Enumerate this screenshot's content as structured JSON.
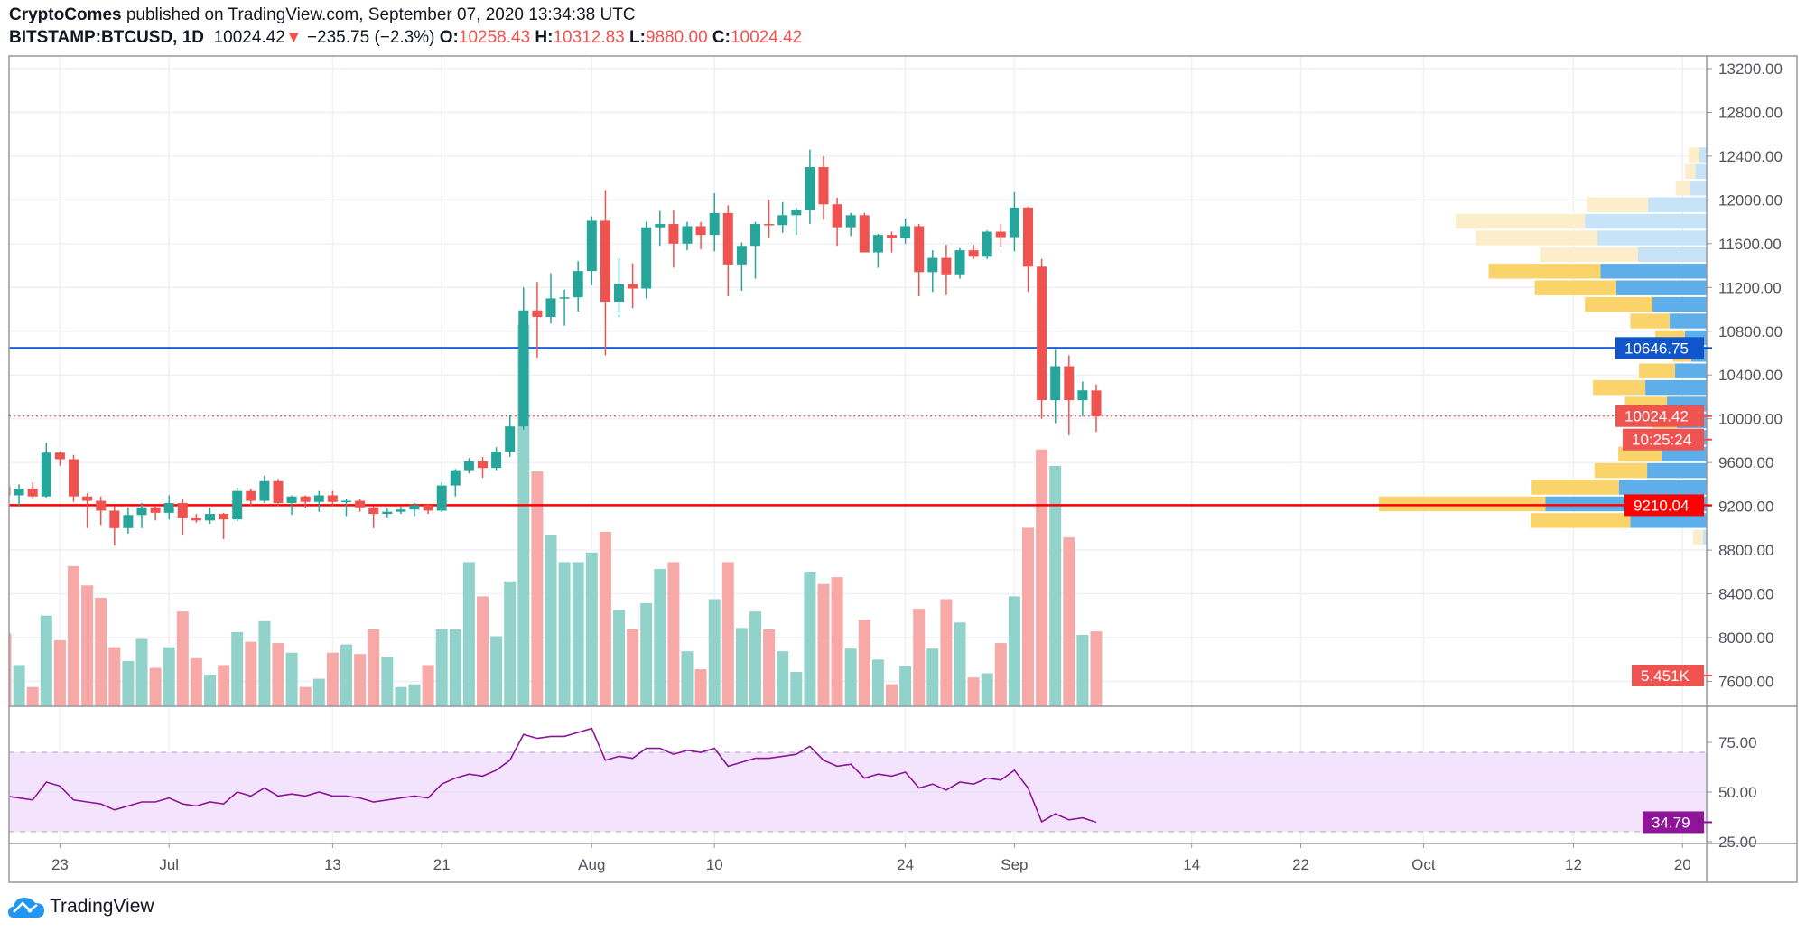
{
  "header": {
    "author": "CryptoComes",
    "published_text": "published on TradingView.com, September 07, 2020 13:34:38 UTC",
    "symbol": "BITSTAMP:BTCUSD, 1D",
    "last": "10024.42",
    "change": "−235.75 (−2.3%)",
    "o_label": "O:",
    "o": "10258.43",
    "h_label": "H:",
    "h": "10312.83",
    "l_label": "L:",
    "l": "9880.00",
    "c_label": "C:",
    "c": "10024.42",
    "change_icon": "triangle-down-icon"
  },
  "footer": {
    "brand": "TradingView",
    "icon": "tradingview-cloud-icon"
  },
  "colors": {
    "up": "#26a69a",
    "down": "#ef5350",
    "vol_up": "#91d2cb",
    "vol_down": "#f7a9a7",
    "profile_up": "#5eaeea",
    "profile_down": "#fad46b",
    "profile_up_light": "#c6e3f7",
    "profile_down_light": "#fdeecb",
    "resistance": "#1f5fd1",
    "support": "#ff0000",
    "rsi_line": "#8e1599",
    "rsi_band": "#f3e3fd",
    "grid": "#eef0f6",
    "axis_text": "#50535e"
  },
  "chart_data": {
    "type": "candlestick",
    "price_axis": {
      "ticks": [
        13200,
        12800,
        12400,
        12000,
        11600,
        11200,
        10800,
        10400,
        10000,
        9600,
        9200,
        8800,
        8400,
        8000,
        7600
      ],
      "ylim": [
        7400,
        13200
      ]
    },
    "time_axis": {
      "ticks": [
        {
          "date": "2020-06-23",
          "label": "23"
        },
        {
          "date": "2020-07-01",
          "label": "Jul"
        },
        {
          "date": "2020-07-13",
          "label": "13"
        },
        {
          "date": "2020-07-21",
          "label": "21"
        },
        {
          "date": "2020-08-01",
          "label": "Aug"
        },
        {
          "date": "2020-08-10",
          "label": "10"
        },
        {
          "date": "2020-08-24",
          "label": "24"
        },
        {
          "date": "2020-09-01",
          "label": "Sep"
        },
        {
          "date": "2020-09-14",
          "label": "14"
        },
        {
          "date": "2020-09-22",
          "label": "22"
        },
        {
          "date": "2020-10-01",
          "label": "Oct"
        },
        {
          "date": "2020-10-12",
          "label": "12"
        },
        {
          "date": "2020-10-20",
          "label": "20"
        }
      ],
      "range": [
        "2020-06-19",
        "2020-10-21"
      ]
    },
    "candles_fields": [
      "date",
      "open",
      "high",
      "low",
      "close",
      "volume_k",
      "rsi"
    ],
    "candles": [
      [
        "2020-06-19",
        9380,
        9440,
        9240,
        9300,
        5.3,
        48
      ],
      [
        "2020-06-20",
        9300,
        9400,
        9200,
        9360,
        3.0,
        47
      ],
      [
        "2020-06-21",
        9360,
        9420,
        9270,
        9290,
        1.4,
        46
      ],
      [
        "2020-06-22",
        9290,
        9780,
        9280,
        9690,
        6.6,
        55
      ],
      [
        "2020-06-23",
        9690,
        9700,
        9570,
        9630,
        4.8,
        53
      ],
      [
        "2020-06-24",
        9630,
        9670,
        9240,
        9290,
        10.2,
        46
      ],
      [
        "2020-06-25",
        9290,
        9320,
        9000,
        9250,
        8.8,
        45
      ],
      [
        "2020-06-26",
        9250,
        9290,
        9030,
        9160,
        7.9,
        44
      ],
      [
        "2020-06-27",
        9160,
        9200,
        8840,
        9000,
        4.3,
        41
      ],
      [
        "2020-06-28",
        9000,
        9190,
        8950,
        9120,
        3.3,
        43
      ],
      [
        "2020-06-29",
        9120,
        9230,
        9000,
        9190,
        4.9,
        45
      ],
      [
        "2020-06-30",
        9190,
        9200,
        9070,
        9140,
        2.8,
        45
      ],
      [
        "2020-07-01",
        9140,
        9300,
        9080,
        9230,
        4.3,
        47
      ],
      [
        "2020-07-02",
        9230,
        9270,
        8940,
        9090,
        6.9,
        44
      ],
      [
        "2020-07-03",
        9090,
        9130,
        9050,
        9070,
        3.5,
        43
      ],
      [
        "2020-07-04",
        9070,
        9190,
        9040,
        9130,
        2.3,
        45
      ],
      [
        "2020-07-05",
        9130,
        9140,
        8900,
        9080,
        3.0,
        44
      ],
      [
        "2020-07-06",
        9080,
        9370,
        9060,
        9340,
        5.4,
        50
      ],
      [
        "2020-07-07",
        9340,
        9360,
        9200,
        9250,
        4.7,
        48
      ],
      [
        "2020-07-08",
        9250,
        9480,
        9230,
        9430,
        6.2,
        52
      ],
      [
        "2020-07-09",
        9430,
        9450,
        9200,
        9230,
        4.6,
        48
      ],
      [
        "2020-07-10",
        9230,
        9300,
        9120,
        9290,
        3.9,
        49
      ],
      [
        "2020-07-11",
        9290,
        9300,
        9180,
        9240,
        1.4,
        48
      ],
      [
        "2020-07-12",
        9240,
        9340,
        9150,
        9300,
        2.0,
        50
      ],
      [
        "2020-07-13",
        9300,
        9340,
        9200,
        9240,
        3.9,
        48
      ],
      [
        "2020-07-14",
        9240,
        9270,
        9110,
        9250,
        4.5,
        48
      ],
      [
        "2020-07-15",
        9250,
        9270,
        9150,
        9190,
        3.8,
        47
      ],
      [
        "2020-07-16",
        9190,
        9200,
        9000,
        9130,
        5.6,
        45
      ],
      [
        "2020-07-17",
        9130,
        9180,
        9090,
        9150,
        3.6,
        46
      ],
      [
        "2020-07-18",
        9150,
        9200,
        9130,
        9170,
        1.4,
        47
      ],
      [
        "2020-07-19",
        9170,
        9230,
        9110,
        9210,
        1.6,
        48
      ],
      [
        "2020-07-20",
        9210,
        9220,
        9130,
        9160,
        3.0,
        47
      ],
      [
        "2020-07-21",
        9160,
        9420,
        9150,
        9390,
        5.6,
        54
      ],
      [
        "2020-07-22",
        9390,
        9540,
        9290,
        9530,
        5.6,
        57
      ],
      [
        "2020-07-23",
        9530,
        9640,
        9500,
        9610,
        10.5,
        59
      ],
      [
        "2020-07-24",
        9610,
        9650,
        9460,
        9550,
        8.0,
        58
      ],
      [
        "2020-07-25",
        9550,
        9740,
        9530,
        9700,
        5.1,
        61
      ],
      [
        "2020-07-26",
        9700,
        10030,
        9650,
        9930,
        9.1,
        66
      ],
      [
        "2020-07-27",
        9930,
        11200,
        9900,
        10990,
        27.8,
        79
      ],
      [
        "2020-07-28",
        10990,
        11250,
        10560,
        10930,
        17.1,
        77
      ],
      [
        "2020-07-29",
        10930,
        11330,
        10870,
        11100,
        12.5,
        78
      ],
      [
        "2020-07-30",
        11100,
        11180,
        10850,
        11110,
        10.5,
        78
      ],
      [
        "2020-07-31",
        11110,
        11440,
        10980,
        11350,
        10.5,
        80
      ],
      [
        "2020-08-01",
        11350,
        11850,
        11220,
        11810,
        11.2,
        82
      ],
      [
        "2020-08-02",
        11810,
        12090,
        10580,
        11070,
        12.7,
        66
      ],
      [
        "2020-08-03",
        11070,
        11470,
        10930,
        11230,
        7.0,
        68
      ],
      [
        "2020-08-04",
        11230,
        11420,
        11010,
        11190,
        5.6,
        67
      ],
      [
        "2020-08-05",
        11190,
        11800,
        11100,
        11750,
        7.5,
        72
      ],
      [
        "2020-08-06",
        11750,
        11900,
        11580,
        11780,
        10.0,
        72
      ],
      [
        "2020-08-07",
        11780,
        11910,
        11380,
        11600,
        10.5,
        69
      ],
      [
        "2020-08-08",
        11600,
        11800,
        11540,
        11760,
        4.0,
        71
      ],
      [
        "2020-08-09",
        11760,
        11800,
        11550,
        11680,
        2.7,
        70
      ],
      [
        "2020-08-10",
        11680,
        12060,
        11530,
        11880,
        7.8,
        72
      ],
      [
        "2020-08-11",
        11880,
        11950,
        11120,
        11410,
        10.5,
        63
      ],
      [
        "2020-08-12",
        11410,
        11610,
        11170,
        11580,
        5.7,
        65
      ],
      [
        "2020-08-13",
        11580,
        11800,
        11280,
        11780,
        6.9,
        67
      ],
      [
        "2020-08-14",
        11780,
        12000,
        11650,
        11770,
        5.6,
        67
      ],
      [
        "2020-08-15",
        11770,
        11980,
        11700,
        11860,
        4.0,
        68
      ],
      [
        "2020-08-16",
        11860,
        11930,
        11680,
        11910,
        2.5,
        69
      ],
      [
        "2020-08-17",
        11910,
        12460,
        11780,
        12300,
        9.8,
        73
      ],
      [
        "2020-08-18",
        12300,
        12400,
        11820,
        11960,
        8.9,
        66
      ],
      [
        "2020-08-19",
        11960,
        12020,
        11580,
        11750,
        9.4,
        63
      ],
      [
        "2020-08-20",
        11750,
        11880,
        11670,
        11860,
        4.2,
        64
      ],
      [
        "2020-08-21",
        11860,
        11880,
        11520,
        11520,
        6.3,
        57
      ],
      [
        "2020-08-22",
        11520,
        11690,
        11380,
        11680,
        3.4,
        59
      ],
      [
        "2020-08-23",
        11680,
        11710,
        11520,
        11650,
        1.6,
        58
      ],
      [
        "2020-08-24",
        11650,
        11830,
        11600,
        11760,
        2.9,
        60
      ],
      [
        "2020-08-25",
        11760,
        11780,
        11120,
        11340,
        7.1,
        52
      ],
      [
        "2020-08-26",
        11340,
        11540,
        11160,
        11470,
        4.2,
        54
      ],
      [
        "2020-08-27",
        11470,
        11590,
        11130,
        11320,
        7.8,
        51
      ],
      [
        "2020-08-28",
        11320,
        11560,
        11280,
        11540,
        6.1,
        55
      ],
      [
        "2020-08-29",
        11540,
        11590,
        11460,
        11480,
        2.1,
        54
      ],
      [
        "2020-08-30",
        11480,
        11720,
        11460,
        11710,
        2.4,
        57
      ],
      [
        "2020-08-31",
        11710,
        11780,
        11570,
        11660,
        4.6,
        56
      ],
      [
        "2020-09-01",
        11660,
        12070,
        11530,
        11930,
        8.0,
        61
      ],
      [
        "2020-09-02",
        11930,
        11940,
        11160,
        11390,
        13.0,
        52
      ],
      [
        "2020-09-03",
        11390,
        11460,
        10000,
        10170,
        18.7,
        35
      ],
      [
        "2020-09-04",
        10170,
        10630,
        9960,
        10480,
        17.5,
        39
      ],
      [
        "2020-09-05",
        10480,
        10580,
        9850,
        10170,
        12.3,
        36
      ],
      [
        "2020-09-06",
        10170,
        10340,
        10020,
        10260,
        5.2,
        37
      ],
      [
        "2020-09-07",
        10258.43,
        10312.83,
        9880,
        10024.42,
        5.451,
        34.79
      ]
    ],
    "volume_profile": {
      "price_range": [
        8842,
        12488
      ],
      "rows_top_to_bottom": [
        {
          "up": 24,
          "down": 36,
          "faded": true
        },
        {
          "up": 38,
          "down": 34,
          "faded": true
        },
        {
          "up": 55,
          "down": 48,
          "faded": true
        },
        {
          "up": 195,
          "down": 203,
          "faded": true
        },
        {
          "up": 405,
          "down": 430,
          "faded": true
        },
        {
          "up": 363,
          "down": 405,
          "faded": true
        },
        {
          "up": 229,
          "down": 326,
          "faded": true
        },
        {
          "up": 353,
          "down": 372,
          "faded": false
        },
        {
          "up": 301,
          "down": 271,
          "faded": false
        },
        {
          "up": 180,
          "down": 225,
          "faded": false
        },
        {
          "up": 123,
          "down": 131,
          "faded": false
        },
        {
          "up": 73,
          "down": 98,
          "faded": false
        },
        {
          "up": 51,
          "down": 61,
          "faded": false
        },
        {
          "up": 105,
          "down": 120,
          "faded": false
        },
        {
          "up": 204,
          "down": 174,
          "faded": false
        },
        {
          "up": 132,
          "down": 140,
          "faded": false
        },
        {
          "up": 99,
          "down": 81,
          "faded": false
        },
        {
          "up": 40,
          "down": 14,
          "faded": false
        },
        {
          "up": 150,
          "down": 144,
          "faded": false
        },
        {
          "up": 198,
          "down": 175,
          "faded": false
        },
        {
          "up": 292,
          "down": 290,
          "faded": false
        },
        {
          "up": 536,
          "down": 554,
          "faded": false
        },
        {
          "up": 254,
          "down": 331,
          "faded": false
        },
        {
          "up": 13,
          "down": 32,
          "faded": true
        }
      ]
    },
    "horizontal_lines": [
      {
        "price": 10646.75,
        "label": "10646.75",
        "color": "#1f5fd1",
        "style": "solid"
      },
      {
        "price": 9210.04,
        "label": "9210.04",
        "color": "#ff0000",
        "style": "solid"
      },
      {
        "price": 10024.42,
        "label": "10024.42",
        "color": "#ef5350",
        "style": "dotted"
      }
    ],
    "countdown": "10:25:24",
    "volume_label": "5.451K",
    "rsi": {
      "ticks": [
        75,
        50,
        25
      ],
      "tick_labels": [
        "75.00",
        "50.00",
        "25.00"
      ],
      "band": [
        30,
        70
      ],
      "last_label": "34.79",
      "ylim": [
        20,
        100
      ]
    }
  }
}
